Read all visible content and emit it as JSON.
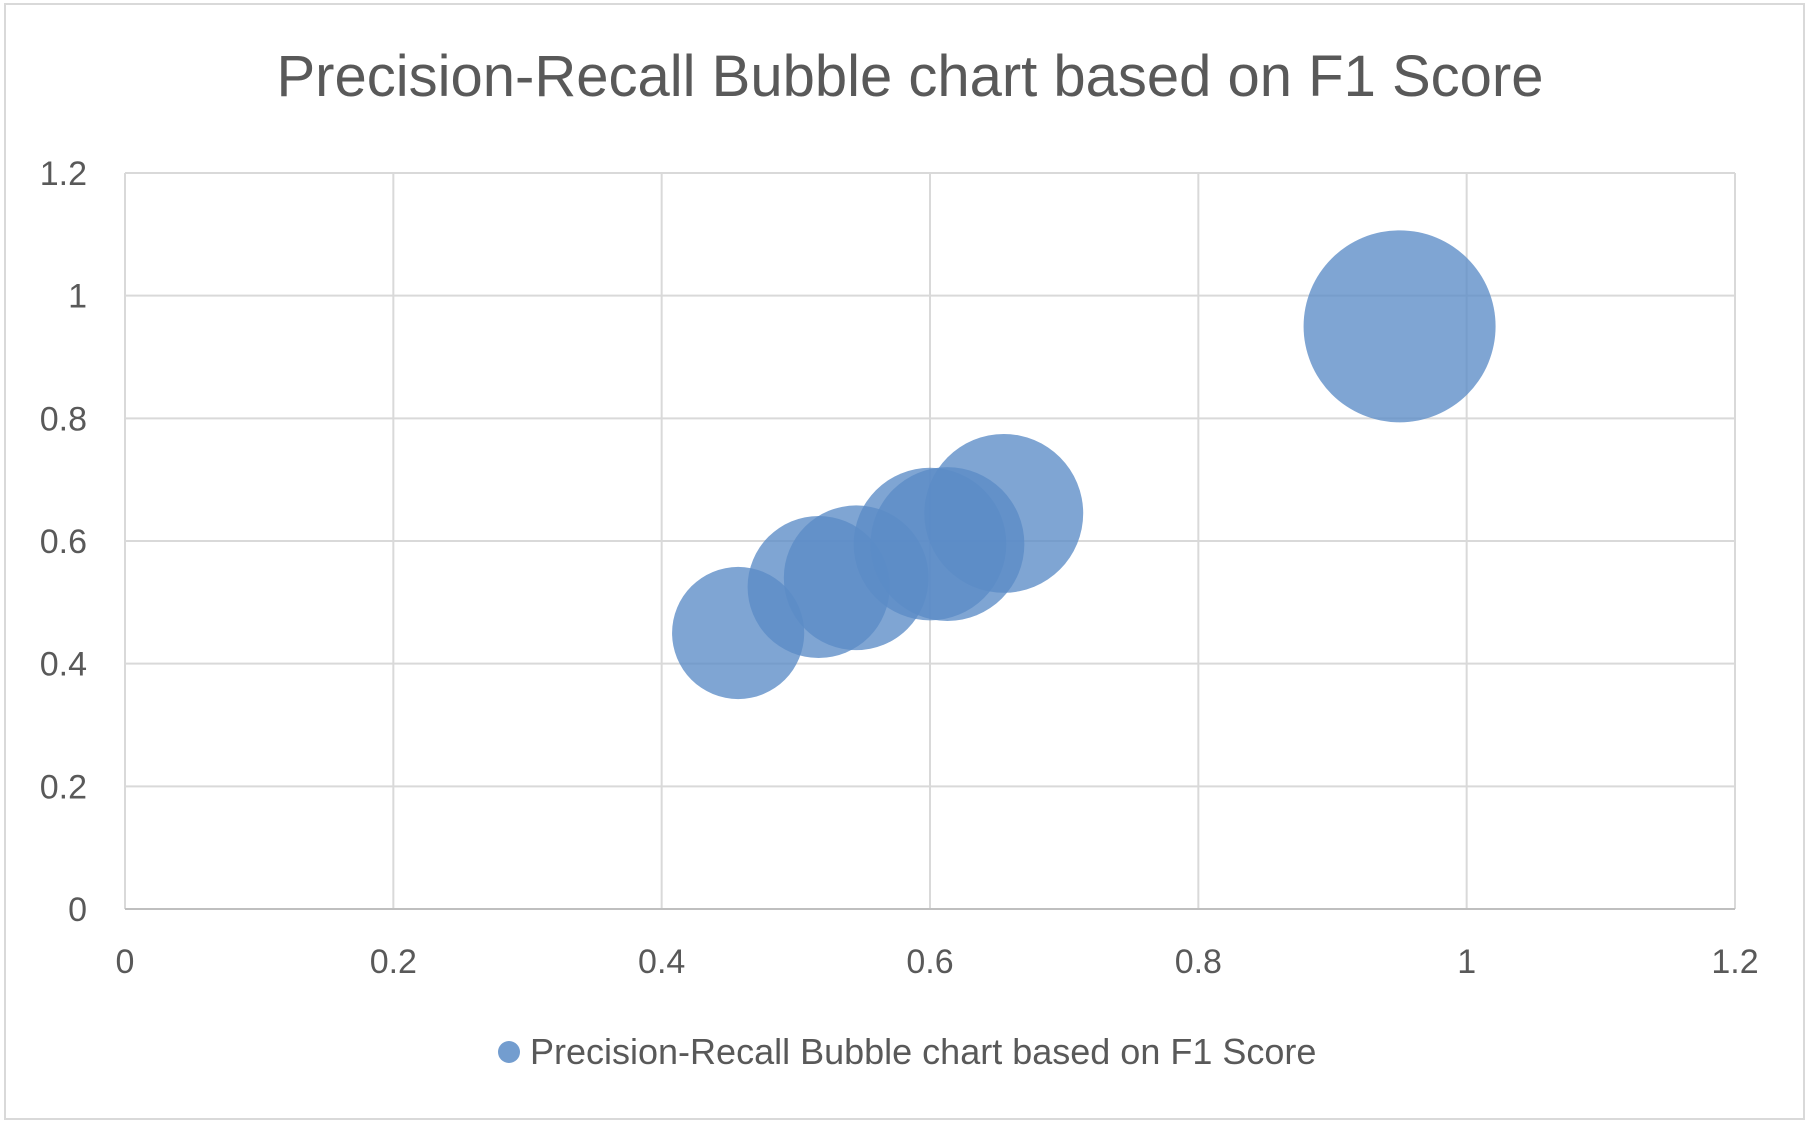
{
  "chart_data": {
    "type": "bubble",
    "title": "Precision-Recall Bubble chart based on F1 Score",
    "xlabel": "",
    "ylabel": "",
    "xlim": [
      0,
      1.2
    ],
    "ylim": [
      0,
      1.2
    ],
    "x_ticks": [
      "0",
      "0.2",
      "0.4",
      "0.6",
      "0.8",
      "1",
      "1.2"
    ],
    "y_ticks": [
      "0",
      "0.2",
      "0.4",
      "0.6",
      "0.8",
      "1",
      "1.2"
    ],
    "grid": true,
    "legend_position": "bottom",
    "series": [
      {
        "name": "Precision-Recall Bubble chart based on F1 Score",
        "color": "#5b8cc7",
        "points": [
          {
            "x": 0.457,
            "y": 0.45,
            "size": 0.45
          },
          {
            "x": 0.517,
            "y": 0.525,
            "size": 0.52
          },
          {
            "x": 0.545,
            "y": 0.54,
            "size": 0.54
          },
          {
            "x": 0.6,
            "y": 0.595,
            "size": 0.6
          },
          {
            "x": 0.613,
            "y": 0.595,
            "size": 0.61
          },
          {
            "x": 0.655,
            "y": 0.645,
            "size": 0.65
          },
          {
            "x": 0.95,
            "y": 0.95,
            "size": 0.95
          }
        ]
      }
    ]
  }
}
